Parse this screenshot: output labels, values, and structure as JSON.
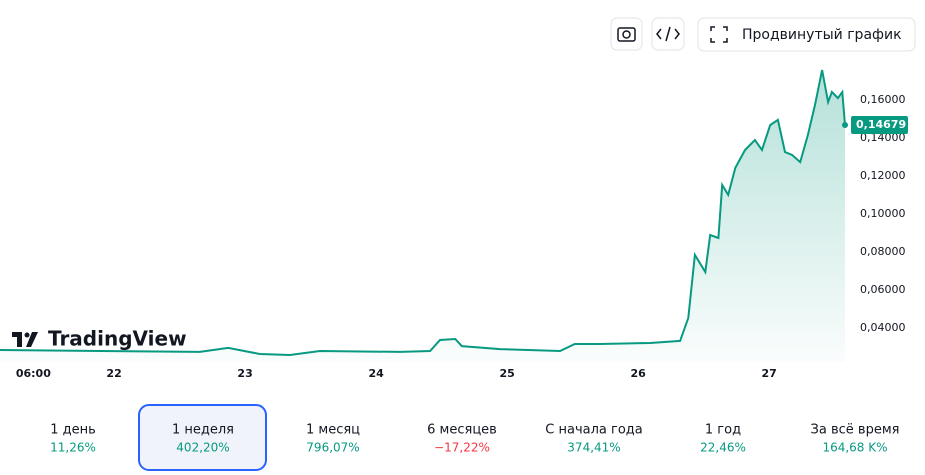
{
  "toolbar": {
    "advanced": "Продвинутый график"
  },
  "logo": "TradingView",
  "chart_data": {
    "type": "area",
    "color": "#089981",
    "x": [
      3.1,
      21.4,
      39.7,
      44.9,
      50.7,
      56.2,
      61.7,
      76.4,
      81.9,
      83.7,
      86.5,
      87.7,
      94.7,
      105.7,
      108.4,
      113.0,
      122.2,
      127.7,
      129.2,
      130.4,
      132.3,
      133.2,
      134.7,
      135.4,
      136.5,
      137.8,
      139.6,
      141.4,
      142.7,
      144.2,
      145.6,
      146.9,
      148.2,
      149.7,
      151.1,
      152.4,
      153.7,
      154.8,
      155.5,
      156.6,
      157.4,
      157.9
    ],
    "values": [
      0.0283,
      0.0278,
      0.0273,
      0.0294,
      0.0262,
      0.0257,
      0.0278,
      0.0273,
      0.0278,
      0.0336,
      0.0341,
      0.0304,
      0.0288,
      0.0278,
      0.0315,
      0.0315,
      0.032,
      0.0331,
      0.0452,
      0.0784,
      0.0694,
      0.0889,
      0.0873,
      0.1152,
      0.11,
      0.1242,
      0.1337,
      0.1389,
      0.1337,
      0.1468,
      0.1495,
      0.1326,
      0.131,
      0.1273,
      0.1416,
      0.1574,
      0.1758,
      0.1589,
      0.1642,
      0.161,
      0.1642,
      0.14679
    ],
    "last_label": "0,14679",
    "xlim": [
      3.1,
      157.9
    ],
    "xticks": [
      {
        "value": 6,
        "label": "06:00"
      },
      {
        "value": 24,
        "label": "22"
      },
      {
        "value": 48,
        "label": "23"
      },
      {
        "value": 72,
        "label": "24"
      },
      {
        "value": 96,
        "label": "25"
      },
      {
        "value": 120,
        "label": "26"
      },
      {
        "value": 144,
        "label": "27"
      }
    ],
    "ylim": [
      0.022,
      0.18
    ],
    "yticks": [
      {
        "value": 0.04,
        "label": "0,04000"
      },
      {
        "value": 0.06,
        "label": "0,06000"
      },
      {
        "value": 0.08,
        "label": "0,08000"
      },
      {
        "value": 0.1,
        "label": "0,10000"
      },
      {
        "value": 0.12,
        "label": "0,12000"
      },
      {
        "value": 0.14,
        "label": "0,14000"
      },
      {
        "value": 0.16,
        "label": "0,16000"
      }
    ]
  },
  "periods": [
    {
      "name": "1 день",
      "change": "11,26%",
      "positive": true
    },
    {
      "name": "1 неделя",
      "change": "402,20%",
      "positive": true,
      "active": true
    },
    {
      "name": "1 месяц",
      "change": "796,07%",
      "positive": true
    },
    {
      "name": "6 месяцев",
      "change": "−17,22%",
      "positive": false
    },
    {
      "name": "С начала года",
      "change": "374,41%",
      "positive": true
    },
    {
      "name": "1 год",
      "change": "22,46%",
      "positive": true
    },
    {
      "name": "За всё время",
      "change": "164,68 K%",
      "positive": true
    }
  ]
}
